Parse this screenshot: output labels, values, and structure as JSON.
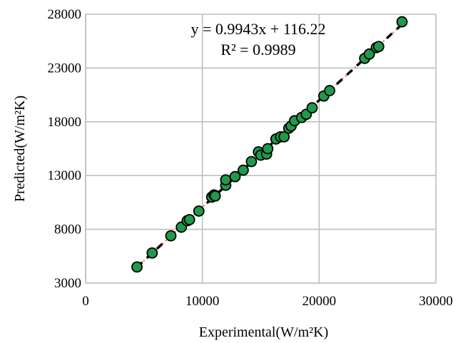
{
  "chart_data": {
    "type": "scatter",
    "xlabel": "Experimental(W/m²K)",
    "ylabel": "Predicted(W/m²K)",
    "xlim": [
      0,
      30000
    ],
    "ylim": [
      3000,
      28000
    ],
    "x_ticks": [
      0,
      10000,
      20000,
      30000
    ],
    "y_ticks": [
      3000,
      8000,
      13000,
      18000,
      23000,
      28000
    ],
    "x_tick_labels": [
      "0",
      "10000",
      "20000",
      "30000"
    ],
    "y_tick_labels": [
      "3000",
      "8000",
      "13000",
      "18000",
      "23000",
      "28000"
    ],
    "grid": true,
    "legend": "none",
    "marker_fill": "#1e9a4a",
    "marker_edge": "#000000",
    "trendline_color": "#e8622a",
    "fit_line_color": "#000000",
    "trendline": {
      "slope": 0.9943,
      "intercept": 116.22
    },
    "annotations": [
      "y = 0.9943x + 116.22",
      "R² = 0.9989"
    ],
    "points": [
      {
        "x": 4400,
        "y": 4500
      },
      {
        "x": 5700,
        "y": 5800
      },
      {
        "x": 7300,
        "y": 7400
      },
      {
        "x": 8200,
        "y": 8200
      },
      {
        "x": 8700,
        "y": 8800
      },
      {
        "x": 8900,
        "y": 8900
      },
      {
        "x": 9700,
        "y": 9700
      },
      {
        "x": 10800,
        "y": 11000
      },
      {
        "x": 11000,
        "y": 11200
      },
      {
        "x": 11100,
        "y": 11100
      },
      {
        "x": 12000,
        "y": 12100
      },
      {
        "x": 12000,
        "y": 12600
      },
      {
        "x": 12800,
        "y": 12900
      },
      {
        "x": 13500,
        "y": 13500
      },
      {
        "x": 14200,
        "y": 14300
      },
      {
        "x": 14800,
        "y": 15200
      },
      {
        "x": 15000,
        "y": 14900
      },
      {
        "x": 15500,
        "y": 15000
      },
      {
        "x": 15600,
        "y": 15500
      },
      {
        "x": 16300,
        "y": 16400
      },
      {
        "x": 16700,
        "y": 16600
      },
      {
        "x": 17000,
        "y": 16600
      },
      {
        "x": 17400,
        "y": 17400
      },
      {
        "x": 17600,
        "y": 17600
      },
      {
        "x": 17900,
        "y": 18100
      },
      {
        "x": 18500,
        "y": 18400
      },
      {
        "x": 18900,
        "y": 18700
      },
      {
        "x": 19400,
        "y": 19300
      },
      {
        "x": 20400,
        "y": 20400
      },
      {
        "x": 20900,
        "y": 20900
      },
      {
        "x": 23900,
        "y": 23900
      },
      {
        "x": 24300,
        "y": 24300
      },
      {
        "x": 24900,
        "y": 24900
      },
      {
        "x": 25100,
        "y": 25000
      },
      {
        "x": 27100,
        "y": 27300
      }
    ]
  }
}
